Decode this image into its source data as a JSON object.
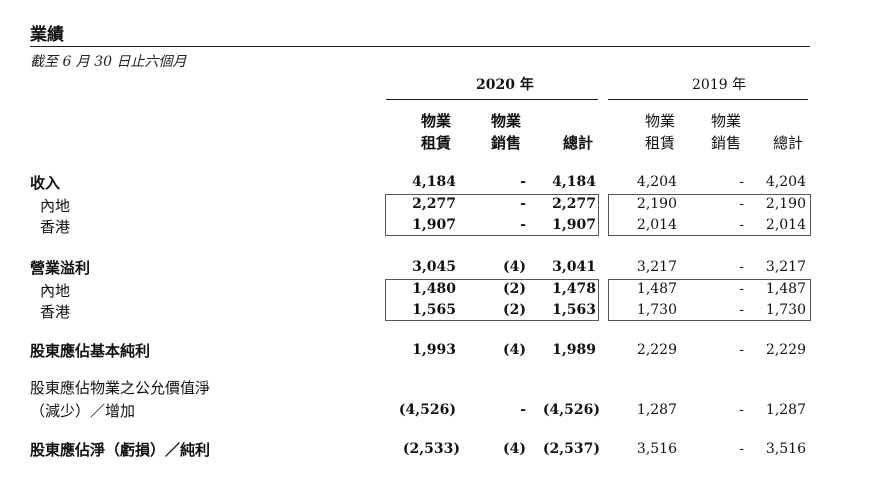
{
  "title": "業績",
  "subtitle": "截至 6 月 30 日止六個月",
  "years": {
    "y2020": "2020 年",
    "y2019": "2019 年"
  },
  "columns": {
    "rent_line1": "物業",
    "rent_line2": "租賃",
    "sale_line1": "物業",
    "sale_line2": "銷售",
    "total": "總計"
  },
  "rows": [
    {
      "label": "收入",
      "bold": true,
      "v2020": [
        "4,184",
        "-",
        "4,184"
      ],
      "v2019": [
        "4,204",
        "-",
        "4,204"
      ]
    },
    {
      "label": "內地",
      "bold": false,
      "v2020": [
        "2,277",
        "-",
        "2,277"
      ],
      "v2019": [
        "2,190",
        "-",
        "2,190"
      ]
    },
    {
      "label": "香港",
      "bold": false,
      "v2020": [
        "1,907",
        "-",
        "1,907"
      ],
      "v2019": [
        "2,014",
        "-",
        "2,014"
      ]
    },
    {
      "label": "營業溢利",
      "bold": true,
      "v2020": [
        "3,045",
        "(4)",
        "3,041"
      ],
      "v2019": [
        "3,217",
        "-",
        "3,217"
      ]
    },
    {
      "label": "內地",
      "bold": false,
      "v2020": [
        "1,480",
        "(2)",
        "1,478"
      ],
      "v2019": [
        "1,487",
        "-",
        "1,487"
      ]
    },
    {
      "label": "香港",
      "bold": false,
      "v2020": [
        "1,565",
        "(2)",
        "1,563"
      ],
      "v2019": [
        "1,730",
        "-",
        "1,730"
      ]
    },
    {
      "label": "股東應佔基本純利",
      "bold": true,
      "v2020": [
        "1,993",
        "(4)",
        "1,989"
      ],
      "v2019": [
        "2,229",
        "-",
        "2,229"
      ]
    },
    {
      "label": "股東應佔物業之公允價值淨",
      "label2": "（減少）／增加",
      "bold": false,
      "v2020": [
        "(4,526)",
        "-",
        "(4,526)"
      ],
      "v2019": [
        "1,287",
        "-",
        "1,287"
      ]
    },
    {
      "label": "股東應佔淨（虧損）／純利",
      "bold": true,
      "v2020": [
        "(2,533)",
        "(4)",
        "(2,537)"
      ],
      "v2019": [
        "3,516",
        "-",
        "3,516"
      ]
    }
  ]
}
